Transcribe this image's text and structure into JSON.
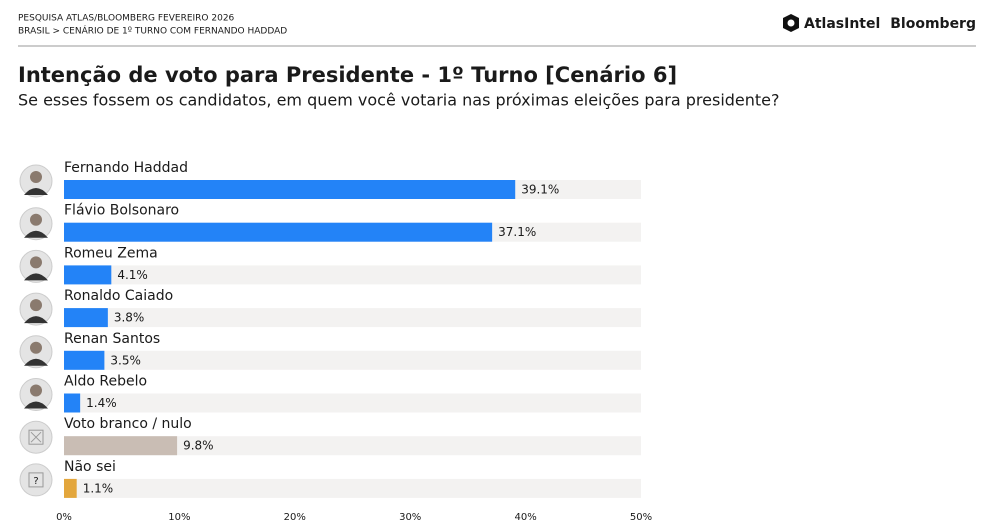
{
  "header": {
    "lines": [
      "PESQUISA ATLAS/BLOOMBERG FEVEREIRO 2026",
      "BRASIL > CENÁRIO DE 1º TURNO COM FERNANDO HADDAD"
    ],
    "logos": [
      "AtlasIntel",
      "Bloomberg"
    ]
  },
  "chart_data": {
    "type": "hbar",
    "title": "Intenção de voto para Presidente - 1º Turno [Cenário 6]",
    "subtitle": "Se esses fossem os candidatos, em quem você votaria nas próximas eleições para presidente?",
    "categories": [
      "Fernando Haddad",
      "Flávio Bolsonaro",
      "Romeu Zema",
      "Ronaldo Caiado",
      "Renan Santos",
      "Aldo Rebelo",
      "Voto branco / nulo",
      "Não sei"
    ],
    "values": [
      39.1,
      37.1,
      4.1,
      3.8,
      3.5,
      1.4,
      9.8,
      1.1
    ],
    "value_labels": [
      "39.1%",
      "37.1%",
      "4.1%",
      "3.8%",
      "3.5%",
      "1.4%",
      "9.8%",
      "1.1%"
    ],
    "colors": [
      "#2383f7",
      "#2383f7",
      "#2383f7",
      "#2383f7",
      "#2383f7",
      "#2383f7",
      "#c9bdb4",
      "#e3a63c"
    ],
    "xlim": [
      0,
      50
    ],
    "xticks": [
      {
        "value": 0,
        "label": "0%"
      },
      {
        "value": 10,
        "label": "10%"
      },
      {
        "value": 20,
        "label": "20%"
      },
      {
        "value": 30,
        "label": "30%"
      },
      {
        "value": 40,
        "label": "40%"
      },
      {
        "value": 50,
        "label": "50%"
      }
    ]
  }
}
